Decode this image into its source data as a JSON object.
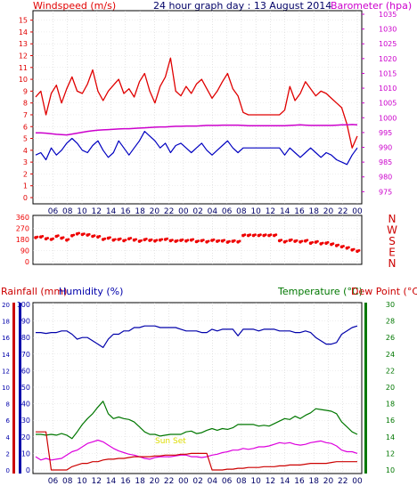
{
  "colors": {
    "wind": "#e00000",
    "wind_gust": "#e00000",
    "wind_avg": "#0000c0",
    "barometer": "#cc00cc",
    "direction": "#ee0000",
    "humidity": "#0000aa",
    "temperature": "#007700",
    "dewpoint": "#dd00dd",
    "rainfall": "#cc0000",
    "sunset": "#dddd00",
    "border": "#000000",
    "grid": "#ffffff"
  },
  "chart_data": [
    {
      "type": "line",
      "title": "24 hour graph day : 13 August 2014",
      "ylabel_left": "Windspeed (m/s)",
      "ylabel_right": "Barometer (hpa)",
      "y_left_ticks": [
        "0",
        "1",
        "2",
        "3",
        "4",
        "5",
        "6",
        "7",
        "8",
        "9",
        "10",
        "11",
        "12",
        "13",
        "14",
        "15"
      ],
      "y_right_ticks": [
        "975",
        "980",
        "985",
        "990",
        "995",
        "1000",
        "1005",
        "1010",
        "1015",
        "1020",
        "1025",
        "1030",
        "1035"
      ],
      "x_ticks": [
        "06",
        "08",
        "10",
        "12",
        "14",
        "16",
        "18",
        "20",
        "22",
        "00",
        "02",
        "04",
        "06",
        "08",
        "10",
        "12",
        "14",
        "16",
        "18",
        "20",
        "22",
        "00"
      ],
      "ylim_left": [
        0,
        15.5
      ],
      "ylim_right": [
        973,
        1035
      ],
      "series": [
        {
          "name": "Windspeed (m/s)",
          "values": [
            8.5,
            9,
            7,
            8.8,
            9.5,
            8,
            9.2,
            10.2,
            9,
            8.8,
            9.6,
            10.8,
            9,
            8.2,
            9,
            9.5,
            10,
            8.8,
            9.2,
            8.5,
            9.8,
            10.5,
            9,
            8,
            9.4,
            10.2,
            11.8,
            9,
            8.6,
            9.4,
            8.8,
            9.6,
            10,
            9.2,
            8.4,
            9,
            9.8,
            10.5,
            9.2,
            8.6,
            7.2,
            7,
            7,
            7,
            7,
            7,
            7,
            7,
            7.4,
            9.4,
            8.2,
            8.8,
            9.8,
            9.2,
            8.6,
            9,
            8.8,
            8.4,
            8,
            7.6,
            6.2,
            4.2,
            5.2
          ]
        },
        {
          "name": "Average wind",
          "values": [
            3.6,
            3.8,
            3.2,
            4.2,
            3.6,
            4,
            4.6,
            5,
            4.6,
            4,
            3.8,
            4.4,
            4.8,
            4,
            3.4,
            3.8,
            4.8,
            4.2,
            3.6,
            4.2,
            4.8,
            5.6,
            5.2,
            4.8,
            4.2,
            4.6,
            3.8,
            4.4,
            4.6,
            4.2,
            3.8,
            4.2,
            4.6,
            4,
            3.6,
            4,
            4.4,
            4.8,
            4.2,
            3.8,
            4.2,
            4.2,
            4.2,
            4.2,
            4.2,
            4.2,
            4.2,
            4.2,
            3.6,
            4.2,
            3.8,
            3.4,
            3.8,
            4.2,
            3.8,
            3.4,
            3.8,
            3.6,
            3.2,
            3,
            2.8,
            3.6,
            4.2
          ]
        },
        {
          "name": "Barometer (hpa)",
          "values": [
            994.9,
            994.9,
            994.8,
            994.6,
            994.4,
            994.3,
            994.2,
            994.5,
            994.8,
            995.1,
            995.4,
            995.6,
            995.8,
            995.9,
            996,
            996.1,
            996.2,
            996.3,
            996.3,
            996.4,
            996.5,
            996.6,
            996.7,
            996.8,
            996.9,
            996.9,
            997,
            997.1,
            997.1,
            997.2,
            997.2,
            997.2,
            997.3,
            997.4,
            997.4,
            997.4,
            997.5,
            997.5,
            997.5,
            997.5,
            997.4,
            997.3,
            997.3,
            997.3,
            997.3,
            997.3,
            997.3,
            997.3,
            997.3,
            997.4,
            997.5,
            997.6,
            997.5,
            997.4,
            997.4,
            997.4,
            997.4,
            997.4,
            997.5,
            997.6,
            997.6,
            997.7,
            997.6
          ]
        }
      ]
    },
    {
      "type": "scatter",
      "ylabel_right": [
        "N",
        "W",
        "S",
        "E",
        "N"
      ],
      "y_left_ticks": [
        "0",
        "90",
        "180",
        "270",
        "360"
      ],
      "ylim": [
        0,
        360
      ],
      "series": [
        {
          "name": "Wind direction",
          "values": [
            195,
            200,
            185,
            180,
            205,
            190,
            175,
            210,
            225,
            220,
            215,
            205,
            200,
            180,
            190,
            175,
            180,
            170,
            185,
            175,
            165,
            178,
            172,
            168,
            175,
            180,
            170,
            165,
            172,
            168,
            175,
            162,
            170,
            160,
            172,
            165,
            168,
            158,
            165,
            160,
            212,
            212,
            212,
            212,
            212,
            212,
            212,
            170,
            160,
            172,
            165,
            160,
            168,
            150,
            158,
            145,
            150,
            140,
            130,
            120,
            110,
            95,
            85
          ]
        }
      ]
    },
    {
      "type": "line",
      "ylabel_left_1": "Rainfall (mm)",
      "ylabel_left_2": "Humidity (%)",
      "ylabel_right_1": "Temperature (°C)",
      "ylabel_right_2": "Dew Point (°C)",
      "annotation": "Sun Set",
      "y_left_ticks": [
        "0",
        "10",
        "20",
        "30",
        "40",
        "50",
        "60",
        "70",
        "80",
        "90",
        "100"
      ],
      "y_rain_ticks": [
        "0",
        "2",
        "4",
        "6",
        "8",
        "10",
        "12",
        "14",
        "16",
        "18",
        "20"
      ],
      "y_right_ticks": [
        "10",
        "12",
        "14",
        "16",
        "18",
        "20",
        "22",
        "24",
        "26",
        "28",
        "30"
      ],
      "ylim_left": [
        0,
        100
      ],
      "ylim_right": [
        10,
        30
      ],
      "series": [
        {
          "name": "Humidity (%)",
          "values": [
            83,
            83,
            82.5,
            83,
            83,
            84,
            84,
            82,
            79,
            80,
            80,
            78,
            76,
            74,
            79,
            82,
            82,
            84,
            84,
            86,
            86,
            87,
            87,
            87,
            86,
            86,
            86,
            86,
            85,
            84,
            84,
            84,
            83,
            83,
            85,
            84,
            85,
            85,
            85,
            81,
            85,
            85,
            85,
            84,
            85,
            85,
            85,
            84,
            84,
            84,
            83,
            83,
            84,
            83,
            80,
            78,
            76,
            76,
            77,
            82,
            84,
            86,
            87
          ]
        },
        {
          "name": "Temperature (°C)",
          "values": [
            14.3,
            14.3,
            14.2,
            14.3,
            14.2,
            14.4,
            14.2,
            13.8,
            14.6,
            15.5,
            16.2,
            16.8,
            17.6,
            18.3,
            16.8,
            16.2,
            16.4,
            16.2,
            16.1,
            15.8,
            15.2,
            14.6,
            14.3,
            14.3,
            14.1,
            14.2,
            14.3,
            14.3,
            14.3,
            14.6,
            14.7,
            14.4,
            14.5,
            14.8,
            15,
            14.8,
            15,
            14.9,
            15.1,
            15.5,
            15.5,
            15.5,
            15.5,
            15.3,
            15.4,
            15.3,
            15.6,
            15.9,
            16.2,
            16.1,
            16.5,
            16.2,
            16.6,
            16.9,
            17.4,
            17.3,
            17.2,
            17.1,
            16.8,
            15.8,
            15.2,
            14.6,
            14.3
          ]
        },
        {
          "name": "Dew Point (°C)",
          "values": [
            11.6,
            11.2,
            11.4,
            11.2,
            11.3,
            11.4,
            11.8,
            12.2,
            12.4,
            12.8,
            13.2,
            13.4,
            13.6,
            13.4,
            13,
            12.6,
            12.3,
            12.1,
            11.9,
            11.8,
            11.6,
            11.4,
            11.3,
            11.5,
            11.6,
            11.6,
            11.6,
            11.7,
            11.8,
            11.8,
            11.6,
            11.6,
            11.5,
            11.6,
            11.8,
            11.9,
            12.1,
            12.2,
            12.4,
            12.4,
            12.6,
            12.5,
            12.6,
            12.8,
            12.8,
            12.9,
            13.1,
            13.3,
            13.2,
            13.3,
            13.1,
            13,
            13.1,
            13.3,
            13.4,
            13.5,
            13.3,
            13.2,
            12.9,
            12.4,
            12.2,
            12.2,
            12
          ]
        },
        {
          "name": "Rainfall (mm)",
          "values": [
            4.6,
            4.6,
            4.6,
            0,
            0,
            0,
            0,
            0.4,
            0.6,
            0.8,
            0.8,
            1,
            1,
            1.2,
            1.3,
            1.3,
            1.4,
            1.4,
            1.5,
            1.6,
            1.6,
            1.6,
            1.6,
            1.7,
            1.7,
            1.8,
            1.8,
            1.8,
            1.9,
            1.9,
            2,
            2,
            2,
            2,
            0,
            0,
            0,
            0.1,
            0.1,
            0.2,
            0.2,
            0.3,
            0.3,
            0.3,
            0.4,
            0.4,
            0.4,
            0.5,
            0.5,
            0.6,
            0.6,
            0.6,
            0.7,
            0.8,
            0.8,
            0.8,
            0.8,
            0.9,
            1,
            1,
            1,
            1,
            1
          ]
        }
      ]
    }
  ]
}
